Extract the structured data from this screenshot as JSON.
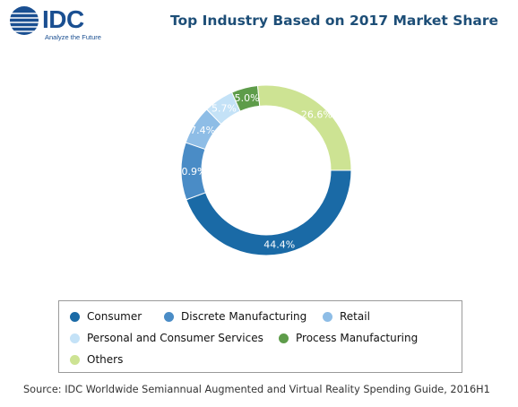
{
  "logo": {
    "brand": "IDC",
    "tagline": "Analyze the Future"
  },
  "chart_data": {
    "type": "pie",
    "title": "Top Industry Based on 2017 Market Share",
    "donut": true,
    "slices": [
      {
        "label": "Consumer",
        "value": 44.4,
        "value_label": "44.4%",
        "color": "#1a6aa6"
      },
      {
        "label": "Discrete Manufacturing",
        "value": 10.9,
        "value_label": "10.9%",
        "color": "#4a8cc6"
      },
      {
        "label": "Retail",
        "value": 7.4,
        "value_label": "7.4%",
        "color": "#8ebde6"
      },
      {
        "label": "Personal and Consumer Services",
        "value": 5.7,
        "value_label": "5.7%",
        "color": "#c4e2f7"
      },
      {
        "label": "Process Manufacturing",
        "value": 5.0,
        "value_label": "5.0%",
        "color": "#5e9c4a"
      },
      {
        "label": "Others",
        "value": 26.6,
        "value_label": "26.6%",
        "color": "#cde393"
      }
    ],
    "legend_position": "bottom"
  },
  "source": "Source: IDC Worldwide Semiannual Augmented and Virtual Reality Spending Guide, 2016H1"
}
